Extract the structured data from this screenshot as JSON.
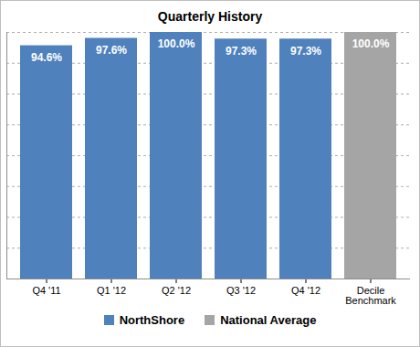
{
  "chart_data": {
    "type": "bar",
    "title": "Quarterly History",
    "categories": [
      "Q4 '11",
      "Q1 '12",
      "Q2 '12",
      "Q3 '12",
      "Q4 '12",
      "Decile Benchmark"
    ],
    "series": [
      {
        "name": "NorthShore",
        "color": "#4f81bd",
        "values": [
          94.6,
          97.6,
          100.0,
          97.3,
          97.3,
          null
        ],
        "value_labels": [
          "94.6%",
          "97.6%",
          "100.0%",
          "97.3%",
          "97.3%",
          null
        ]
      },
      {
        "name": "National Average",
        "color": "#a5a5a5",
        "values": [
          null,
          null,
          null,
          null,
          null,
          100.0
        ],
        "value_labels": [
          null,
          null,
          null,
          null,
          null,
          "100.0%"
        ]
      }
    ],
    "ylim": [
      0,
      100
    ],
    "yticks": [
      0,
      12.5,
      25,
      37.5,
      50,
      62.5,
      75,
      87.5,
      100
    ],
    "grid": true,
    "data_labels": true,
    "tick_labels": "x",
    "legend": "bottom"
  }
}
